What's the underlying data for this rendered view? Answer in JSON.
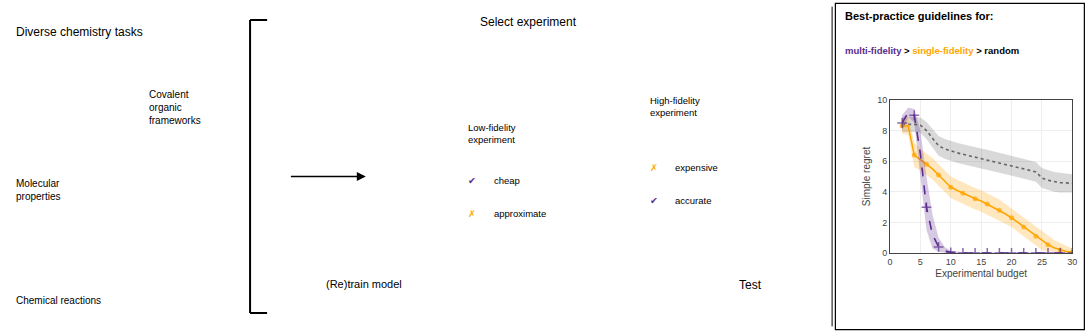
{
  "chart_data": {
    "type": "line",
    "title": "Best-practice guidelines for:",
    "subtitle": [
      {
        "text": "multi-fidelity",
        "color": "#5B2C8D"
      },
      {
        "text": " > ",
        "color": "#000000"
      },
      {
        "text": "single-fidelity",
        "color": "#FFA500"
      },
      {
        "text": " > random",
        "color": "#000000"
      }
    ],
    "x_label": "Experimental budget",
    "y_label": "Simple regret",
    "xlim": [
      0,
      30
    ],
    "ylim": [
      0,
      10
    ],
    "xticks": [
      0,
      5,
      10,
      15,
      20,
      25,
      30
    ],
    "yticks": [
      0,
      2,
      4,
      6,
      8,
      10
    ],
    "grid": true,
    "x": [
      2,
      3,
      4,
      5,
      6,
      7,
      8,
      9,
      10,
      11,
      12,
      13,
      14,
      15,
      16,
      17,
      18,
      19,
      20,
      21,
      22,
      23,
      24,
      25,
      26,
      27,
      28,
      29,
      30
    ],
    "series": [
      {
        "color": "#666666",
        "line_style": "dotted",
        "values": [
          8.4,
          8.4,
          8.4,
          8.35,
          8.0,
          7.5,
          7.0,
          6.8,
          6.65,
          6.55,
          6.45,
          6.35,
          6.25,
          6.18,
          6.1,
          6.0,
          5.9,
          5.8,
          5.7,
          5.6,
          5.5,
          5.4,
          5.3,
          4.9,
          4.75,
          4.65,
          4.6,
          4.58,
          4.55
        ],
        "upper": [
          8.9,
          8.9,
          8.9,
          8.85,
          8.55,
          8.1,
          7.65,
          7.45,
          7.3,
          7.2,
          7.1,
          7.0,
          6.9,
          6.83,
          6.75,
          6.65,
          6.55,
          6.45,
          6.35,
          6.25,
          6.15,
          6.05,
          5.95,
          5.55,
          5.4,
          5.3,
          5.25,
          5.2,
          5.15
        ],
        "lower": [
          7.9,
          7.9,
          7.9,
          7.85,
          7.45,
          6.9,
          6.35,
          6.15,
          6.0,
          5.9,
          5.8,
          5.7,
          5.6,
          5.53,
          5.45,
          5.35,
          5.25,
          5.15,
          5.05,
          4.95,
          4.85,
          4.75,
          4.65,
          4.25,
          4.1,
          4.0,
          3.95,
          3.96,
          3.95
        ]
      },
      {
        "color": "#FFA500",
        "line_style": "solid",
        "marker": "circle",
        "values": [
          8.3,
          8.3,
          6.4,
          6.1,
          5.8,
          5.5,
          5.1,
          4.7,
          4.3,
          4.1,
          3.9,
          3.7,
          3.55,
          3.4,
          3.2,
          3.0,
          2.8,
          2.55,
          2.3,
          2.0,
          1.7,
          1.4,
          1.1,
          0.8,
          0.55,
          0.35,
          0.2,
          0.1,
          0.05
        ],
        "upper": [
          8.8,
          8.9,
          7.2,
          6.8,
          6.5,
          6.2,
          5.8,
          5.4,
          5.0,
          4.8,
          4.6,
          4.4,
          4.25,
          4.1,
          3.9,
          3.7,
          3.5,
          3.2,
          2.9,
          2.6,
          2.3,
          2.0,
          1.7,
          1.4,
          1.1,
          0.85,
          0.65,
          0.45,
          0.3
        ],
        "lower": [
          7.8,
          7.7,
          5.6,
          5.4,
          5.1,
          4.8,
          4.4,
          4.0,
          3.6,
          3.4,
          3.2,
          3.0,
          2.85,
          2.7,
          2.5,
          2.3,
          2.1,
          1.9,
          1.7,
          1.4,
          1.1,
          0.8,
          0.5,
          0.2,
          0.1,
          0.05,
          0.02,
          0.01,
          0.01
        ]
      },
      {
        "color": "#5B2C8D",
        "line_style": "dashed",
        "marker": "cross",
        "values": [
          8.5,
          9.2,
          9.0,
          6.5,
          3.0,
          1.2,
          0.4,
          0.15,
          0.05,
          0.02,
          0.01,
          0.01,
          0.01,
          0.01,
          0.01,
          0.01,
          0.01,
          0.01,
          0.01,
          0.01,
          0.01,
          0.01,
          0.01,
          0.01,
          0.01,
          0.01,
          0.01,
          0.01,
          0.01
        ],
        "upper": [
          9.0,
          9.5,
          9.4,
          8.0,
          5.0,
          2.5,
          1.0,
          0.4,
          0.15,
          0.08,
          0.05,
          0.04,
          0.04,
          0.04,
          0.04,
          0.04,
          0.04,
          0.04,
          0.04,
          0.04,
          0.04,
          0.04,
          0.04,
          0.04,
          0.04,
          0.04,
          0.04,
          0.04,
          0.04
        ],
        "lower": [
          8.0,
          8.9,
          8.5,
          5.0,
          1.5,
          0.3,
          0.08,
          0.02,
          0.01,
          0.01,
          0.01,
          0.01,
          0.01,
          0.01,
          0.01,
          0.01,
          0.01,
          0.01,
          0.01,
          0.01,
          0.01,
          0.01,
          0.01,
          0.01,
          0.01,
          0.01,
          0.01,
          0.01,
          0.01
        ]
      }
    ],
    "annotations": [
      {
        "text": "Diverse chemistry tasks"
      },
      {
        "text": "Covalent\norganic\nframeworks"
      },
      {
        "text": "Molecular\nproperties"
      },
      {
        "text": "Chemical reactions"
      },
      {
        "text": "Select experiment"
      },
      {
        "text": "(Re)train model"
      },
      {
        "text": "Test"
      },
      {
        "text": "Low-fidelity\nexperiment"
      },
      {
        "text": "✔",
        "color": "#5B2C8D"
      },
      {
        "text": "cheap"
      },
      {
        "text": "✗",
        "color": "#FFA500"
      },
      {
        "text": "approximate"
      },
      {
        "text": "High-fidelity\nexperiment"
      },
      {
        "text": "✗",
        "color": "#FFA500"
      },
      {
        "text": "expensive"
      },
      {
        "text": "✔",
        "color": "#5B2C8D"
      },
      {
        "text": "accurate"
      }
    ]
  }
}
